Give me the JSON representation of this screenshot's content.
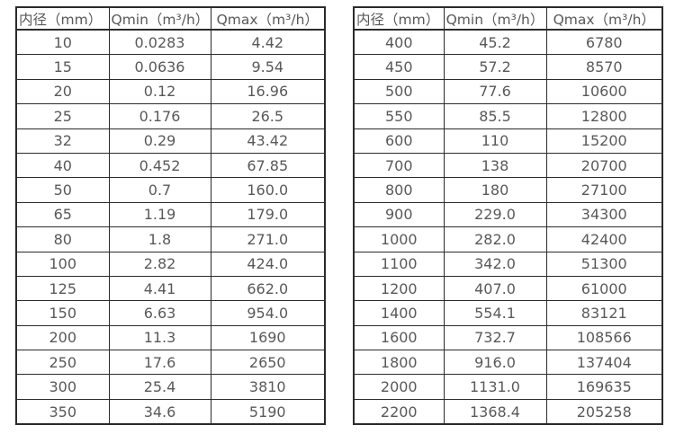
{
  "colors": {
    "background": "#ffffff",
    "border": "#2b2b2b",
    "text": "#595959"
  },
  "tables": [
    {
      "name": "diameter-flow-table-small",
      "headers": [
        "内径（mm）",
        "Qmin（m³/h）",
        "Qmax（m³/h）"
      ],
      "rows": [
        [
          "10",
          "0.0283",
          "4.42"
        ],
        [
          "15",
          "0.0636",
          "9.54"
        ],
        [
          "20",
          "0.12",
          "16.96"
        ],
        [
          "25",
          "0.176",
          "26.5"
        ],
        [
          "32",
          "0.29",
          "43.42"
        ],
        [
          "40",
          "0.452",
          "67.85"
        ],
        [
          "50",
          "0.7",
          "160.0"
        ],
        [
          "65",
          "1.19",
          "179.0"
        ],
        [
          "80",
          "1.8",
          "271.0"
        ],
        [
          "100",
          "2.82",
          "424.0"
        ],
        [
          "125",
          "4.41",
          "662.0"
        ],
        [
          "150",
          "6.63",
          "954.0"
        ],
        [
          "200",
          "11.3",
          "1690"
        ],
        [
          "250",
          "17.6",
          "2650"
        ],
        [
          "300",
          "25.4",
          "3810"
        ],
        [
          "350",
          "34.6",
          "5190"
        ]
      ]
    },
    {
      "name": "diameter-flow-table-large",
      "headers": [
        "内径（mm）",
        "Qmin（m³/h）",
        "Qmax（m³/h）"
      ],
      "rows": [
        [
          "400",
          "45.2",
          "6780"
        ],
        [
          "450",
          "57.2",
          "8570"
        ],
        [
          "500",
          "77.6",
          "10600"
        ],
        [
          "550",
          "85.5",
          "12800"
        ],
        [
          "600",
          "110",
          "15200"
        ],
        [
          "700",
          "138",
          "20700"
        ],
        [
          "800",
          "180",
          "27100"
        ],
        [
          "900",
          "229.0",
          "34300"
        ],
        [
          "1000",
          "282.0",
          "42400"
        ],
        [
          "1100",
          "342.0",
          "51300"
        ],
        [
          "1200",
          "407.0",
          "61000"
        ],
        [
          "1400",
          "554.1",
          "83121"
        ],
        [
          "1600",
          "732.7",
          "108566"
        ],
        [
          "1800",
          "916.0",
          "137404"
        ],
        [
          "2000",
          "1131.0",
          "169635"
        ],
        [
          "2200",
          "1368.4",
          "205258"
        ]
      ]
    }
  ]
}
